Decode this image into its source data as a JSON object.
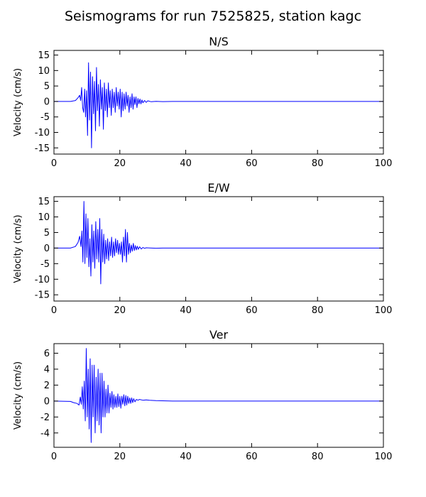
{
  "figure": {
    "title": "Seismograms for run 7525825, station kagc"
  },
  "chart_data": [
    {
      "type": "line",
      "title": "N/S",
      "xlabel": "",
      "ylabel": "Velocity (cm/s)",
      "xlim": [
        0,
        100
      ],
      "ylim": [
        -17,
        16.5
      ],
      "xticks": [
        0,
        20,
        40,
        60,
        80,
        100
      ],
      "yticks": [
        -15,
        -10,
        -5,
        0,
        5,
        10,
        15
      ],
      "grid": false,
      "color": "#0000ff",
      "series": [
        {
          "x": [
            0,
            5,
            6.5,
            7.3,
            7.8,
            8.1,
            8.4,
            8.7,
            9.0,
            9.3,
            9.6,
            9.9,
            10.2,
            10.5,
            10.8,
            11.1,
            11.4,
            11.7,
            12.0,
            12.3,
            12.6,
            12.9,
            13.2,
            13.5,
            13.8,
            14.1,
            14.4,
            14.7,
            15.0,
            15.3,
            15.6,
            15.9,
            16.2,
            16.5,
            16.8,
            17.1,
            17.4,
            17.7,
            18.0,
            18.3,
            18.6,
            18.9,
            19.2,
            19.5,
            19.8,
            20.1,
            20.4,
            20.7,
            21.0,
            21.3,
            21.6,
            21.9,
            22.2,
            22.5,
            22.8,
            23.1,
            23.4,
            23.7,
            24.0,
            24.3,
            24.6,
            24.9,
            25.2,
            25.5,
            25.8,
            26.1,
            26.4,
            26.7,
            27.0,
            27.5,
            28.0,
            28.5,
            29.5,
            31,
            33,
            36,
            100
          ],
          "y": [
            0,
            0,
            0.3,
            1.2,
            2.0,
            0.3,
            4.5,
            -2.0,
            -3.5,
            4.0,
            -5.0,
            3.5,
            -11.0,
            12.5,
            -6.0,
            9.5,
            -15.0,
            8.0,
            -4.0,
            6.5,
            -9.5,
            11.0,
            -3.0,
            5.5,
            -8.0,
            7.0,
            -2.5,
            4.5,
            -9.0,
            6.0,
            -3.0,
            4.0,
            -5.0,
            6.0,
            -2.0,
            3.5,
            -4.5,
            4.0,
            -2.0,
            3.0,
            -3.5,
            4.5,
            -1.5,
            3.0,
            -2.5,
            4.0,
            -5.0,
            3.0,
            -3.0,
            2.5,
            -2.5,
            3.0,
            -1.5,
            2.0,
            -3.5,
            1.5,
            -2.0,
            2.5,
            -2.5,
            1.5,
            -1.0,
            1.5,
            -2.0,
            1.0,
            -0.8,
            0.8,
            -0.8,
            0.5,
            -0.4,
            0.3,
            -0.3,
            0.2,
            -0.1,
            0.05,
            -0.05,
            0,
            0
          ]
        }
      ]
    },
    {
      "type": "line",
      "title": "E/W",
      "xlabel": "",
      "ylabel": "Velocity (cm/s)",
      "xlim": [
        0,
        100
      ],
      "ylim": [
        -17,
        16.5
      ],
      "xticks": [
        0,
        20,
        40,
        60,
        80,
        100
      ],
      "yticks": [
        -15,
        -10,
        -5,
        0,
        5,
        10,
        15
      ],
      "grid": false,
      "color": "#0000ff",
      "series": [
        {
          "x": [
            0,
            5,
            6.5,
            7.3,
            7.8,
            8.2,
            8.5,
            8.8,
            9.1,
            9.4,
            9.7,
            10.0,
            10.3,
            10.6,
            10.9,
            11.2,
            11.5,
            11.8,
            12.1,
            12.4,
            12.7,
            13.0,
            13.3,
            13.6,
            13.9,
            14.2,
            14.5,
            14.8,
            15.1,
            15.4,
            15.7,
            16.0,
            16.3,
            16.6,
            16.9,
            17.2,
            17.5,
            17.8,
            18.1,
            18.4,
            18.7,
            19.0,
            19.3,
            19.6,
            19.9,
            20.2,
            20.5,
            20.8,
            21.1,
            21.4,
            21.7,
            22.0,
            22.3,
            22.6,
            22.9,
            23.2,
            23.5,
            23.8,
            24.1,
            24.4,
            24.7,
            25.0,
            25.3,
            25.6,
            26.0,
            26.5,
            27.0,
            27.5,
            28.0,
            29.0,
            31,
            33,
            36,
            100
          ],
          "y": [
            0,
            0,
            0.5,
            1.8,
            3.8,
            0.5,
            5.5,
            -4.5,
            15.0,
            -5.0,
            11.0,
            -3.0,
            9.5,
            -6.0,
            3.0,
            -9.0,
            7.5,
            -4.5,
            5.5,
            -6.5,
            8.5,
            -3.5,
            6.0,
            -4.5,
            9.5,
            -11.5,
            6.0,
            -4.5,
            4.5,
            -5.0,
            2.5,
            -3.5,
            3.0,
            -4.0,
            2.0,
            -2.5,
            3.5,
            -3.0,
            2.0,
            -2.5,
            3.0,
            -1.5,
            2.5,
            -2.0,
            1.5,
            -2.0,
            2.0,
            -4.5,
            3.5,
            -2.5,
            6.0,
            -4.5,
            5.0,
            -2.0,
            1.5,
            -1.5,
            1.0,
            -1.0,
            1.5,
            -0.8,
            0.8,
            -0.6,
            0.6,
            -0.4,
            0.4,
            -0.3,
            0.2,
            -0.1,
            0.1,
            0.05,
            -0.05,
            0,
            0,
            0
          ]
        }
      ]
    },
    {
      "type": "line",
      "title": "Ver",
      "xlabel": "",
      "ylabel": "Velocity (cm/s)",
      "xlim": [
        0,
        100
      ],
      "ylim": [
        -5.8,
        7.2
      ],
      "xticks": [
        0,
        20,
        40,
        60,
        80,
        100
      ],
      "yticks": [
        -4,
        -2,
        0,
        2,
        4,
        6
      ],
      "grid": false,
      "color": "#0000ff",
      "series": [
        {
          "x": [
            0,
            5,
            6.0,
            7.0,
            7.6,
            8.0,
            8.3,
            8.6,
            8.9,
            9.2,
            9.5,
            9.8,
            10.1,
            10.4,
            10.7,
            11.0,
            11.3,
            11.6,
            11.9,
            12.2,
            12.5,
            12.8,
            13.1,
            13.4,
            13.7,
            14.0,
            14.3,
            14.6,
            14.9,
            15.2,
            15.5,
            15.8,
            16.1,
            16.4,
            16.7,
            17.0,
            17.3,
            17.6,
            17.9,
            18.2,
            18.5,
            18.8,
            19.1,
            19.4,
            19.7,
            20.0,
            20.3,
            20.6,
            20.9,
            21.2,
            21.5,
            21.8,
            22.1,
            22.4,
            22.7,
            23.0,
            23.3,
            23.6,
            23.9,
            24.2,
            24.6,
            25.0,
            25.5,
            26.0,
            27.0,
            28.0,
            29.0,
            31.0,
            33.0,
            36.0,
            100
          ],
          "y": [
            0,
            -0.05,
            -0.2,
            -0.3,
            -0.5,
            0.5,
            -0.4,
            1.8,
            -1.0,
            2.5,
            -2.5,
            6.6,
            -2.0,
            4.0,
            -3.5,
            5.3,
            -5.2,
            4.5,
            -2.0,
            4.5,
            -4.0,
            3.0,
            -2.5,
            4.0,
            -3.0,
            3.5,
            -4.0,
            3.5,
            -2.0,
            2.5,
            -2.0,
            1.5,
            -1.5,
            2.0,
            -1.5,
            1.0,
            -0.8,
            1.2,
            -1.0,
            0.8,
            -0.8,
            0.6,
            -0.8,
            0.9,
            -0.7,
            0.6,
            -0.9,
            0.6,
            -0.4,
            0.8,
            -0.6,
            0.7,
            -0.5,
            0.6,
            -0.3,
            0.4,
            -0.3,
            0.4,
            -0.2,
            0.3,
            -0.1,
            0.2,
            0.1,
            0.2,
            0.1,
            0.15,
            0.1,
            0.05,
            0.03,
            0,
            0
          ]
        }
      ]
    }
  ]
}
